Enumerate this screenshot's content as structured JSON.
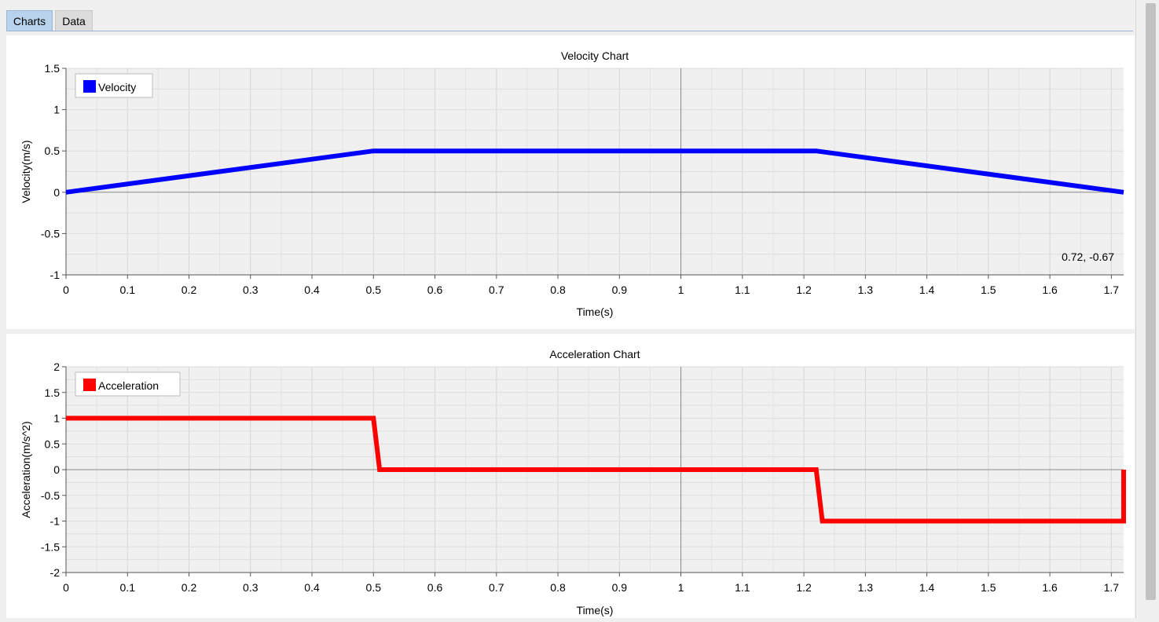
{
  "tabs": [
    {
      "label": "Charts",
      "active": true
    },
    {
      "label": "Data",
      "active": false
    }
  ],
  "colors": {
    "velocity": "#0000ff",
    "acceleration": "#ff0000",
    "plot_bg": "#f0f0f0",
    "grid": "#d9d9d9",
    "zero_line": "#8a8a8a"
  },
  "chart_data": [
    {
      "type": "line",
      "title": "Velocity Chart",
      "xlabel": "Time(s)",
      "ylabel": "Velocity(m/s)",
      "xlim": [
        0,
        1.72
      ],
      "ylim": [
        -1,
        1.5
      ],
      "xticks": [
        "0",
        "0.1",
        "0.2",
        "0.3",
        "0.4",
        "0.5",
        "0.6",
        "0.7",
        "0.8",
        "0.9",
        "1",
        "1.1",
        "1.2",
        "1.3",
        "1.4",
        "1.5",
        "1.6",
        "1.7"
      ],
      "yticks": [
        "-1",
        "-0.5",
        "0",
        "0.5",
        "1",
        "1.5"
      ],
      "grid": true,
      "legend_position": "top-left",
      "cursor_readout": "0.72, -0.67",
      "series": [
        {
          "name": "Velocity",
          "color": "#0000ff",
          "x": [
            0,
            0.5,
            1.22,
            1.72
          ],
          "y": [
            0,
            0.5,
            0.5,
            0
          ]
        }
      ]
    },
    {
      "type": "line",
      "title": "Acceleration Chart",
      "xlabel": "Time(s)",
      "ylabel": "Acceleration(m/s^2)",
      "xlim": [
        0,
        1.72
      ],
      "ylim": [
        -2,
        2
      ],
      "xticks": [
        "0",
        "0.1",
        "0.2",
        "0.3",
        "0.4",
        "0.5",
        "0.6",
        "0.7",
        "0.8",
        "0.9",
        "1",
        "1.1",
        "1.2",
        "1.3",
        "1.4",
        "1.5",
        "1.6",
        "1.7"
      ],
      "yticks": [
        "-2",
        "-1.5",
        "-1",
        "-0.5",
        "0",
        "0.5",
        "1",
        "1.5",
        "2"
      ],
      "grid": true,
      "legend_position": "top-left",
      "series": [
        {
          "name": "Acceleration",
          "color": "#ff0000",
          "x": [
            0,
            0.5,
            0.51,
            1.22,
            1.23,
            1.72,
            1.72
          ],
          "y": [
            1,
            1,
            0,
            0,
            -1,
            -1,
            0
          ]
        }
      ]
    }
  ]
}
